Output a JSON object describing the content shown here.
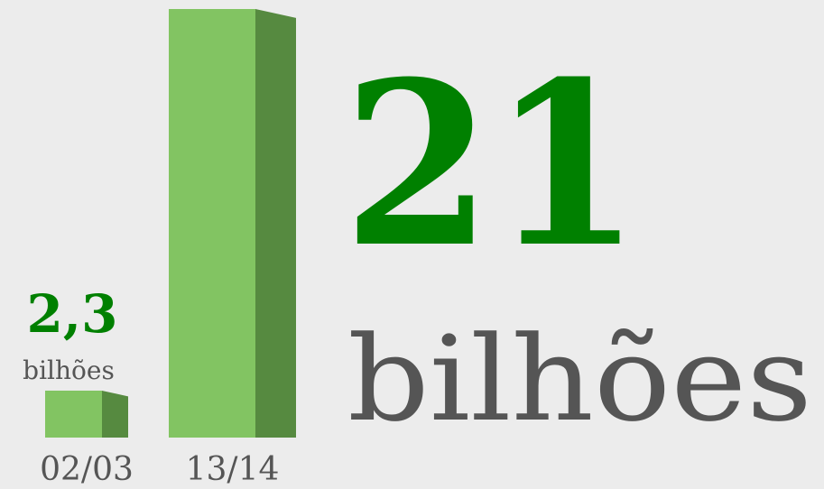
{
  "chart_data": {
    "type": "bar",
    "categories": [
      "02/03",
      "13/14"
    ],
    "values": [
      2.3,
      21
    ],
    "value_labels": [
      "2,3",
      "21"
    ],
    "unit": "bilhões",
    "color": "#82c462",
    "side_color": "#568a40",
    "label_color": "#008000"
  }
}
